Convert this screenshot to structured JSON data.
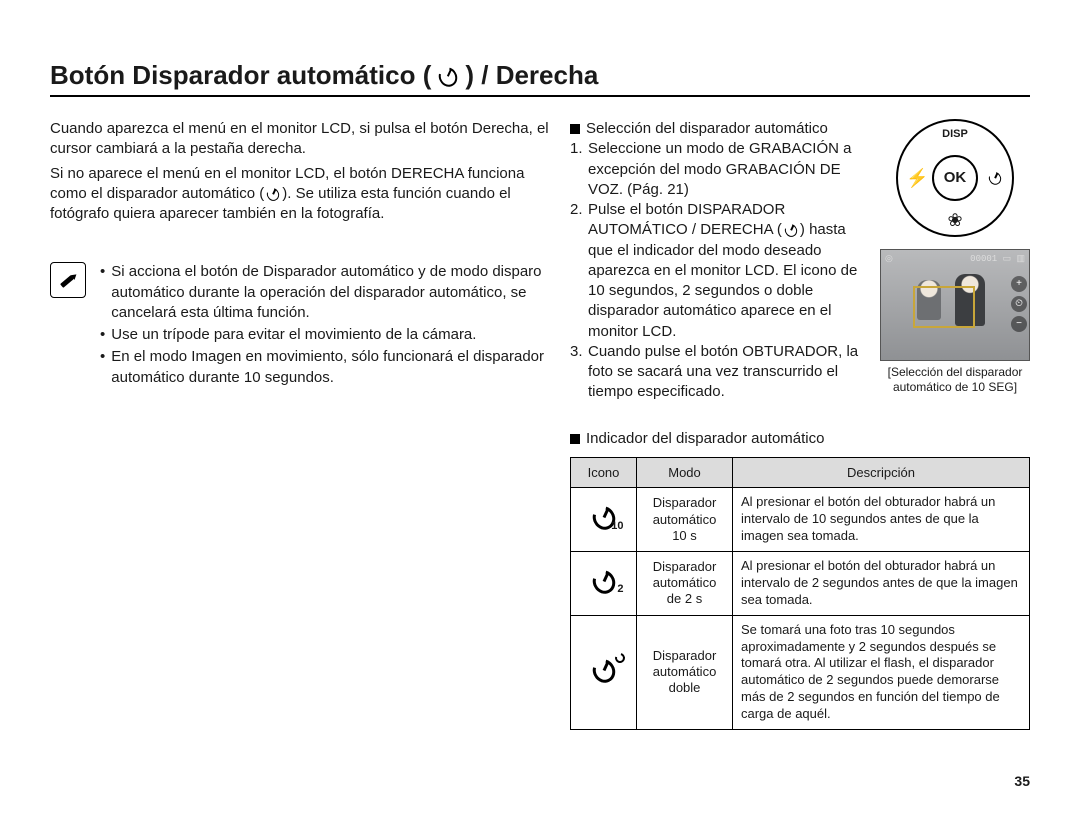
{
  "title_pre": "Botón Disparador automático (",
  "title_post": ") / Derecha",
  "left_para1": "Cuando aparezca el menú en el monitor LCD, si pulsa el botón Derecha, el cursor cambiará a la pestaña derecha.",
  "left_para2a": "Si no aparece el menú en el monitor LCD, el botón DERECHA funciona como el disparador automático (",
  "left_para2b": "). Se utiliza esta función cuando el fotógrafo quiera aparecer también en la fotografía.",
  "notes": [
    "Si acciona el botón de Disparador automático y de modo disparo automático durante la operación del disparador automático, se cancelará esta última función.",
    "Use un trípode para evitar el movimiento de la cámara.",
    "En el modo Imagen en movimiento, sólo funcionará el disparador automático durante 10 segundos."
  ],
  "right_section_title": "Selección del disparador automático",
  "steps": {
    "s1": "Seleccione un modo de GRABACIÓN a excepción del modo GRABACIÓN DE VOZ. (Pág. 21)",
    "s2a": "Pulse el botón DISPARADOR AUTOMÁTICO / DERECHA (",
    "s2b": ") hasta que el indicador del modo deseado aparezca en el monitor LCD. El icono de 10 segundos, 2 segundos o doble disparador automático aparece en el monitor LCD.",
    "s3": "Cuando pulse el botón OBTURADOR, la foto se sacará una vez transcurrido el tiempo especificado."
  },
  "wheel": {
    "top": "DISP",
    "ok": "OK"
  },
  "lcd_top_left": "◎",
  "lcd_top_right": "00001 ▭ ▥",
  "lcd_caption": "[Selección del disparador automático de 10 SEG]",
  "indicator_title": "Indicador del disparador automático",
  "table": {
    "headers": [
      "Icono",
      "Modo",
      "Descripción"
    ],
    "rows": [
      {
        "sub": "10",
        "mode": "Disparador automático 10 s",
        "desc": "Al presionar el botón del obturador habrá un intervalo de 10 segundos antes de que la imagen sea tomada."
      },
      {
        "sub": "2",
        "mode": "Disparador automático de 2 s",
        "desc": "Al presionar el botón del obturador habrá un intervalo de 2 segundos antes de que la imagen sea tomada."
      },
      {
        "sub": "",
        "mode": "Disparador automático doble",
        "desc": "Se tomará una foto tras 10 segundos aproximadamente y 2 segundos después se tomará otra. Al utilizar el flash, el disparador automático de 2 segundos puede demorarse más de 2 segundos en función del tiempo de carga de aquél."
      }
    ]
  },
  "page_number": "35",
  "colors": {
    "header_bg": "#dcdcdc",
    "border": "#000000",
    "text": "#1a1a1a"
  }
}
